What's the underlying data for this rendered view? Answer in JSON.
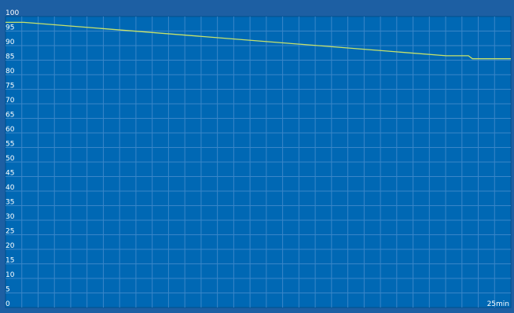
{
  "chart_data": {
    "type": "line",
    "title": "",
    "xlabel": "",
    "ylabel": "",
    "xlim": [
      0,
      25
    ],
    "ylim": [
      0,
      100
    ],
    "y_ticks": [
      0,
      5,
      10,
      15,
      20,
      25,
      30,
      35,
      40,
      45,
      50,
      55,
      60,
      65,
      70,
      75,
      80,
      85,
      90,
      95,
      100
    ],
    "y_tick_labels": [
      "0",
      "5",
      "10",
      "15",
      "20",
      "25",
      "30",
      "35",
      "40",
      "45",
      "50",
      "55",
      "60",
      "65",
      "70",
      "75",
      "80",
      "85",
      "90",
      "95",
      "100"
    ],
    "x_tick_label": "25min",
    "grid": true,
    "legend": "none",
    "series": [
      {
        "color": "#c8e26a",
        "x": [
          0,
          0.9,
          21.8,
          22.9,
          23.1,
          25
        ],
        "y": [
          98,
          98,
          86.5,
          86.5,
          85.5,
          85.5
        ]
      }
    ]
  },
  "colors": {
    "background": "#1d5fa3",
    "plot_background": "#0068b4",
    "grid_line": "#3a86c8",
    "border": "#004f8c",
    "label_text": "#ffffff"
  }
}
